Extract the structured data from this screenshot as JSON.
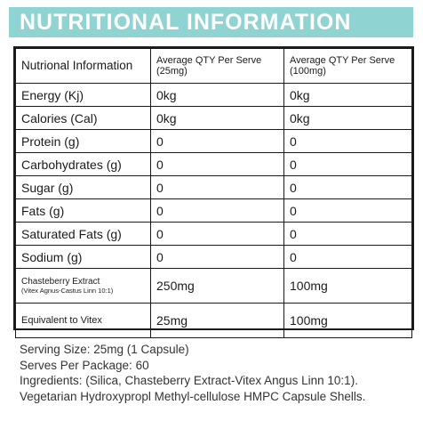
{
  "banner": {
    "title": "NUTRITIONAL INFORMATION",
    "color": "#8fd3d2"
  },
  "table": {
    "header": {
      "label": "Nutrional Information",
      "col1": "Average QTY Per Serve (25mg)",
      "col2": "Average QTY Per Serve (100mg)"
    },
    "rows": [
      {
        "label": "Energy (Kj)",
        "v1": "0kg",
        "v2": "0kg"
      },
      {
        "label": "Calories (Cal)",
        "v1": "0kg",
        "v2": "0kg"
      },
      {
        "label": "Protein (g)",
        "v1": "0",
        "v2": "0"
      },
      {
        "label": "Carbohydrates (g)",
        "v1": "0",
        "v2": "0"
      },
      {
        "label": "Sugar (g)",
        "v1": "0",
        "v2": "0"
      },
      {
        "label": "Fats (g)",
        "v1": "0",
        "v2": "0"
      },
      {
        "label": "Saturated Fats (g)",
        "v1": "0",
        "v2": "0"
      },
      {
        "label": "Sodium (g)",
        "v1": "0",
        "v2": "0"
      },
      {
        "label": "Chasteberry Extract",
        "sublabel": "(Vitex Agnus-Castus Linn 10:1)",
        "v1": "250mg",
        "v2": "100mg"
      },
      {
        "label": "Equivalent to Vitex",
        "v1": "25mg",
        "v2": "100mg"
      }
    ]
  },
  "notes": {
    "serving_size": "Serving Size: 25mg (1 Capsule)",
    "serves_per_package": "Serves Per Package: 60",
    "ingredients": "Ingredients: (Silica, Chasteberry Extract-Vitex Angus Linn 10:1).",
    "capsule": "Vegetarian Hydroxypropl Methyl-cellulose HMPC Capsule Shells."
  }
}
